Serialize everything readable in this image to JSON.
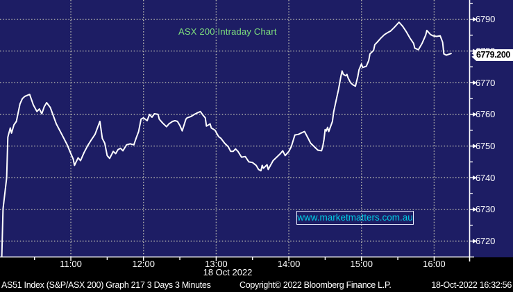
{
  "title": "ASX 200 Intraday Chart",
  "watermark": {
    "text": "www.marketmatters.com.au"
  },
  "price_label": {
    "value": "6779.200"
  },
  "colors": {
    "background": "#1d1d64",
    "grid": "#b9b9b0",
    "line": "#ffffff",
    "axis": "#ffffff",
    "title_text": "#7ee07e",
    "watermark_text": "#00cde4",
    "bottom_background": "#000000",
    "price_box_background": "#ffffff",
    "price_box_text": "#000000"
  },
  "x_axis": {
    "date_label": "18 Oct 2022",
    "ticks": [
      {
        "m": 60,
        "label": "11:00"
      },
      {
        "m": 120,
        "label": "12:00"
      },
      {
        "m": 180,
        "label": "13:00"
      },
      {
        "m": 240,
        "label": "14:00"
      },
      {
        "m": 300,
        "label": "15:00"
      },
      {
        "m": 360,
        "label": "16:00"
      }
    ],
    "minor_ticks_m": [
      30,
      90,
      150,
      210,
      270,
      330
    ]
  },
  "y_axis": {
    "tick_values": [
      6790,
      6780,
      6770,
      6760,
      6750,
      6740,
      6730,
      6720
    ],
    "minor_tick_values": [
      6795,
      6785,
      6775,
      6765,
      6755,
      6745,
      6735,
      6725
    ]
  },
  "status_bar": {
    "left": "AS51 Index (S&P/ASX 200) Graph 217 3 Days 3 Minutes",
    "center": "Copyright© 2022 Bloomberg Finance L.P.",
    "right": "18-Oct-2022 16:32:56"
  },
  "chart_data": {
    "type": "line",
    "title": "ASX 200 Intraday Chart",
    "series_name": "AS51 Index (S&P/ASX 200)",
    "x_unit": "minutes after 10:00 on 18 Oct 2022",
    "xlim": [
      1.5,
      389
    ],
    "ylim": [
      6715.1,
      6796.1
    ],
    "last_value": 6779.2,
    "grid": true,
    "points": [
      [
        3,
        6715.2
      ],
      [
        4,
        6730.2
      ],
      [
        7,
        6740.0
      ],
      [
        8,
        6752.8
      ],
      [
        10,
        6755.7
      ],
      [
        11,
        6754.1
      ],
      [
        13,
        6756.7
      ],
      [
        15,
        6757.8
      ],
      [
        18,
        6763.3
      ],
      [
        20,
        6765.0
      ],
      [
        22,
        6765.7
      ],
      [
        26,
        6766.3
      ],
      [
        29,
        6763.0
      ],
      [
        32,
        6760.9
      ],
      [
        34,
        6761.7
      ],
      [
        36,
        6760.2
      ],
      [
        38,
        6762.4
      ],
      [
        40,
        6763.7
      ],
      [
        43,
        6762.2
      ],
      [
        46,
        6759.1
      ],
      [
        48,
        6757.0
      ],
      [
        51,
        6754.8
      ],
      [
        54,
        6752.6
      ],
      [
        57,
        6750.4
      ],
      [
        59,
        6748.5
      ],
      [
        62,
        6745.9
      ],
      [
        63,
        6743.9
      ],
      [
        66,
        6746.3
      ],
      [
        68,
        6745.4
      ],
      [
        71,
        6748.0
      ],
      [
        74,
        6750.2
      ],
      [
        77,
        6752.0
      ],
      [
        80,
        6753.7
      ],
      [
        84,
        6757.8
      ],
      [
        86,
        6752.4
      ],
      [
        88,
        6750.9
      ],
      [
        90,
        6747.0
      ],
      [
        92,
        6746.1
      ],
      [
        95,
        6748.3
      ],
      [
        97,
        6747.6
      ],
      [
        99,
        6748.9
      ],
      [
        101,
        6749.3
      ],
      [
        103,
        6748.5
      ],
      [
        106,
        6750.4
      ],
      [
        109,
        6750.7
      ],
      [
        112,
        6750.4
      ],
      [
        114,
        6752.6
      ],
      [
        116,
        6754.6
      ],
      [
        118,
        6758.5
      ],
      [
        120,
        6758.9
      ],
      [
        123,
        6758.0
      ],
      [
        125,
        6760.0
      ],
      [
        127,
        6759.1
      ],
      [
        129,
        6760.2
      ],
      [
        132,
        6760.0
      ],
      [
        133,
        6758.5
      ],
      [
        136,
        6757.2
      ],
      [
        139,
        6756.1
      ],
      [
        141,
        6757.0
      ],
      [
        144,
        6757.8
      ],
      [
        146,
        6758.0
      ],
      [
        148,
        6757.8
      ],
      [
        150,
        6756.5
      ],
      [
        152,
        6754.8
      ],
      [
        155,
        6758.5
      ],
      [
        156,
        6758.9
      ],
      [
        159,
        6759.3
      ],
      [
        162,
        6760.0
      ],
      [
        164,
        6760.4
      ],
      [
        167,
        6760.9
      ],
      [
        169,
        6759.8
      ],
      [
        171,
        6758.9
      ],
      [
        172,
        6756.3
      ],
      [
        175,
        6757.0
      ],
      [
        176,
        6755.7
      ],
      [
        179,
        6755.0
      ],
      [
        182,
        6753.0
      ],
      [
        184,
        6752.4
      ],
      [
        187,
        6750.9
      ],
      [
        190,
        6749.8
      ],
      [
        192,
        6748.3
      ],
      [
        194,
        6748.3
      ],
      [
        196,
        6749.1
      ],
      [
        198,
        6748.3
      ],
      [
        201,
        6746.5
      ],
      [
        204,
        6746.7
      ],
      [
        207,
        6745.0
      ],
      [
        210,
        6744.8
      ],
      [
        213,
        6743.9
      ],
      [
        215,
        6742.6
      ],
      [
        217,
        6742.2
      ],
      [
        218,
        6743.9
      ],
      [
        219,
        6743.0
      ],
      [
        222,
        6744.1
      ],
      [
        223,
        6742.6
      ],
      [
        227,
        6745.4
      ],
      [
        230,
        6746.5
      ],
      [
        233,
        6747.6
      ],
      [
        235,
        6748.5
      ],
      [
        237,
        6747.0
      ],
      [
        240,
        6748.3
      ],
      [
        242,
        6749.8
      ],
      [
        245,
        6753.5
      ],
      [
        248,
        6753.7
      ],
      [
        250,
        6754.1
      ],
      [
        253,
        6754.6
      ],
      [
        256,
        6752.4
      ],
      [
        258,
        6750.9
      ],
      [
        261,
        6749.8
      ],
      [
        264,
        6748.7
      ],
      [
        267,
        6748.5
      ],
      [
        268,
        6749.8
      ],
      [
        269,
        6752.0
      ],
      [
        270,
        6755.2
      ],
      [
        271,
        6754.8
      ],
      [
        272,
        6755.9
      ],
      [
        273,
        6754.6
      ],
      [
        276,
        6757.8
      ],
      [
        277,
        6760.7
      ],
      [
        279,
        6764.3
      ],
      [
        281,
        6767.8
      ],
      [
        283,
        6772.0
      ],
      [
        284,
        6773.7
      ],
      [
        285,
        6772.6
      ],
      [
        287,
        6772.2
      ],
      [
        288,
        6772.6
      ],
      [
        289,
        6771.5
      ],
      [
        291,
        6770.0
      ],
      [
        293,
        6769.3
      ],
      [
        295,
        6768.9
      ],
      [
        297,
        6772.0
      ],
      [
        298,
        6774.1
      ],
      [
        300,
        6775.9
      ],
      [
        301,
        6774.8
      ],
      [
        304,
        6775.2
      ],
      [
        306,
        6777.0
      ],
      [
        307,
        6779.1
      ],
      [
        310,
        6780.2
      ],
      [
        311,
        6782.0
      ],
      [
        313,
        6782.8
      ],
      [
        316,
        6784.1
      ],
      [
        319,
        6785.2
      ],
      [
        322,
        6785.9
      ],
      [
        324,
        6786.3
      ],
      [
        327,
        6787.4
      ],
      [
        331,
        6789.1
      ],
      [
        334,
        6787.8
      ],
      [
        337,
        6786.1
      ],
      [
        340,
        6784.1
      ],
      [
        343,
        6782.4
      ],
      [
        344,
        6780.9
      ],
      [
        347,
        6780.4
      ],
      [
        350,
        6782.4
      ],
      [
        353,
        6785.0
      ],
      [
        354,
        6786.5
      ],
      [
        357,
        6785.2
      ],
      [
        359,
        6784.8
      ],
      [
        362,
        6784.6
      ],
      [
        365,
        6784.8
      ],
      [
        367,
        6782.8
      ],
      [
        368,
        6779.1
      ],
      [
        370,
        6778.7
      ],
      [
        374,
        6779.2
      ]
    ]
  }
}
